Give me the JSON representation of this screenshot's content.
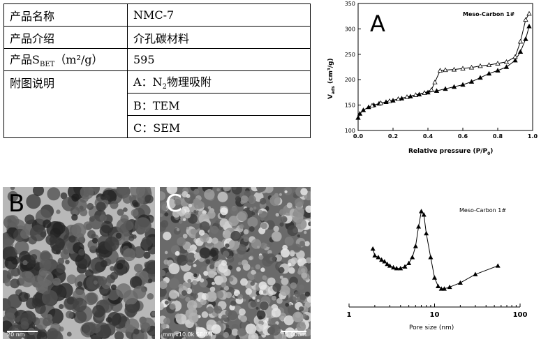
{
  "table": {
    "rows": [
      {
        "key": "产品名称",
        "value": "NMC-7"
      },
      {
        "key": "产品介绍",
        "value": "介孔碳材料"
      },
      {
        "key_main": "产品S",
        "key_sub": "BET",
        "key_unit": "（m²/g）",
        "value": "595"
      },
      {
        "key": "附图说明",
        "values": [
          "物理吸附",
          "B：TEM",
          "C：SEM"
        ],
        "a_prefix": "A：N",
        "a_sub": "2"
      }
    ]
  },
  "panels": {
    "tem": {
      "letter": "B",
      "caption": "20 nm"
    },
    "sem": {
      "letter": "C",
      "caption_left": "mm x10.0k SE(M)",
      "caption_right": "5.00um"
    }
  },
  "chart_data": [
    {
      "type": "line",
      "panel_letter": "A",
      "legend": "Meso-Carbon 1#",
      "xlabel": "Relative pressure (P/P",
      "xlabel_sub": "0",
      "xlabel_end": ")",
      "ylabel": "V",
      "ylabel_sub": "ads",
      "ylabel_unit": " (cm³/g)",
      "xlim": [
        0.0,
        1.0
      ],
      "ylim": [
        100,
        350
      ],
      "xticks": [
        "0.0",
        "0.2",
        "0.4",
        "0.6",
        "0.8",
        "1.0"
      ],
      "yticks": [
        "100",
        "150",
        "200",
        "250",
        "300",
        "350"
      ],
      "series": [
        {
          "marker": "filled-triangle",
          "x": [
            0.0,
            0.01,
            0.03,
            0.06,
            0.09,
            0.12,
            0.16,
            0.2,
            0.25,
            0.3,
            0.35,
            0.4,
            0.45,
            0.5,
            0.55,
            0.6,
            0.65,
            0.7,
            0.75,
            0.8,
            0.85,
            0.9,
            0.93,
            0.96,
            0.98
          ],
          "y": [
            125,
            133,
            140,
            146,
            150,
            153,
            156,
            159,
            163,
            167,
            171,
            175,
            178,
            182,
            186,
            190,
            196,
            204,
            212,
            218,
            225,
            238,
            255,
            280,
            305
          ]
        },
        {
          "marker": "open-triangle",
          "x": [
            0.98,
            0.96,
            0.93,
            0.9,
            0.85,
            0.8,
            0.75,
            0.7,
            0.65,
            0.6,
            0.55,
            0.5,
            0.47,
            0.44,
            0.42,
            0.38,
            0.33,
            0.28,
            0.23,
            0.18,
            0.13,
            0.08
          ],
          "y": [
            330,
            318,
            275,
            245,
            235,
            232,
            229,
            227,
            224,
            222,
            220,
            219,
            218,
            195,
            180,
            174,
            170,
            166,
            162,
            158,
            154,
            149
          ]
        }
      ]
    },
    {
      "type": "line",
      "legend": "Meso-Carbon 1#",
      "xlabel": "Pore size (nm)",
      "xscale": "log",
      "xlim": [
        1,
        100
      ],
      "xticks": [
        "1",
        "10",
        "100"
      ],
      "series": [
        {
          "marker": "filled-triangle",
          "x": [
            1.9,
            2.0,
            2.2,
            2.4,
            2.6,
            2.8,
            3.0,
            3.3,
            3.6,
            4.0,
            4.5,
            5.0,
            5.5,
            6.0,
            6.5,
            7.0,
            7.5,
            8.0,
            9.0,
            10.0,
            11.0,
            12.0,
            13.0,
            15.0,
            20.0,
            30.0,
            55.0
          ],
          "y": [
            0.52,
            0.44,
            0.42,
            0.39,
            0.37,
            0.34,
            0.32,
            0.3,
            0.29,
            0.29,
            0.31,
            0.35,
            0.42,
            0.55,
            0.78,
            0.96,
            0.92,
            0.7,
            0.42,
            0.18,
            0.08,
            0.05,
            0.05,
            0.07,
            0.12,
            0.22,
            0.32
          ]
        }
      ]
    }
  ]
}
